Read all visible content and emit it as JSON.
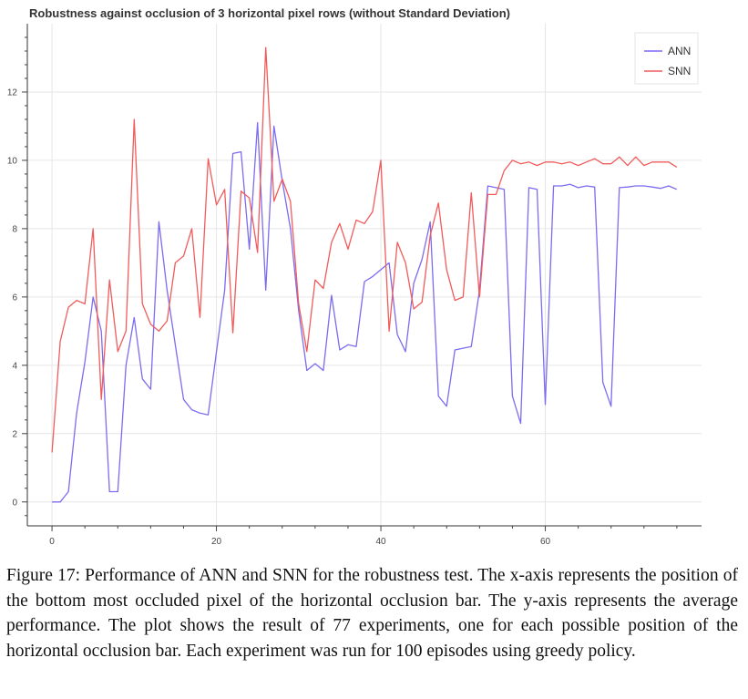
{
  "chart_data": {
    "type": "line",
    "title": "Robustness against occlusion of 3 horizontal pixel rows (without Standard Deviation)",
    "xlabel": "",
    "ylabel": "",
    "xlim": [
      -3,
      79
    ],
    "ylim": [
      -0.7,
      14
    ],
    "xticks": [
      0,
      20,
      40,
      60
    ],
    "yticks": [
      0,
      2,
      4,
      6,
      8,
      10,
      12
    ],
    "grid": true,
    "legend_position": "top-right",
    "x": [
      0,
      1,
      2,
      3,
      4,
      5,
      6,
      7,
      8,
      9,
      10,
      11,
      12,
      13,
      14,
      15,
      16,
      17,
      18,
      19,
      20,
      21,
      22,
      23,
      24,
      25,
      26,
      27,
      28,
      29,
      30,
      31,
      32,
      33,
      34,
      35,
      36,
      37,
      38,
      39,
      40,
      41,
      42,
      43,
      44,
      45,
      46,
      47,
      48,
      49,
      50,
      51,
      52,
      53,
      54,
      55,
      56,
      57,
      58,
      59,
      60,
      61,
      62,
      63,
      64,
      65,
      66,
      67,
      68,
      69,
      70,
      71,
      72,
      73,
      74,
      75,
      76
    ],
    "series": [
      {
        "name": "ANN",
        "color": "#7b6cf0",
        "values": [
          0.0,
          0.0,
          0.3,
          2.6,
          4.1,
          6.0,
          5.0,
          0.3,
          0.3,
          4.0,
          5.4,
          3.6,
          3.3,
          8.2,
          6.2,
          4.6,
          3.0,
          2.7,
          2.6,
          2.55,
          4.4,
          6.2,
          10.2,
          10.25,
          7.4,
          11.1,
          6.2,
          11.0,
          9.4,
          8.0,
          5.6,
          3.85,
          4.05,
          3.85,
          6.05,
          4.45,
          4.6,
          4.55,
          6.45,
          6.6,
          6.8,
          7.0,
          4.9,
          4.4,
          6.4,
          7.1,
          8.2,
          3.1,
          2.8,
          4.45,
          4.5,
          4.55,
          6.2,
          9.25,
          9.2,
          9.15,
          3.1,
          2.3,
          9.2,
          9.15,
          2.85,
          9.25,
          9.25,
          9.3,
          9.2,
          9.25,
          9.22,
          3.5,
          2.8,
          9.2,
          9.22,
          9.25,
          9.25,
          9.22,
          9.18,
          9.25,
          9.15
        ]
      },
      {
        "name": "SNN",
        "color": "#f25b5b",
        "values": [
          1.45,
          4.7,
          5.7,
          5.9,
          5.8,
          8.0,
          3.0,
          6.5,
          4.4,
          5.0,
          11.2,
          5.8,
          5.2,
          5.0,
          5.3,
          7.0,
          7.2,
          8.0,
          5.4,
          10.05,
          8.7,
          9.15,
          4.95,
          9.1,
          8.9,
          7.3,
          13.3,
          8.8,
          9.45,
          8.8,
          5.8,
          4.4,
          6.5,
          6.25,
          7.6,
          8.15,
          7.4,
          8.25,
          8.15,
          8.5,
          10.0,
          5.0,
          7.6,
          7.0,
          5.65,
          5.85,
          7.8,
          8.75,
          6.8,
          5.9,
          6.0,
          9.05,
          6.0,
          9.0,
          9.0,
          9.7,
          10.0,
          9.9,
          9.95,
          9.85,
          9.95,
          9.95,
          9.9,
          9.95,
          9.85,
          9.95,
          10.05,
          9.9,
          9.9,
          10.1,
          9.85,
          10.1,
          9.85,
          9.95,
          9.95,
          9.95,
          9.8
        ]
      }
    ]
  },
  "caption": "Figure 17: Performance of ANN and SNN for the robustness test. The x-axis represents the position of the bottom most occluded pixel of the horizontal occlusion bar. The y-axis represents the average performance. The plot shows the result of 77 experiments, one for each possible position of the horizontal occlusion bar. Each experiment was run for 100 episodes using greedy policy."
}
